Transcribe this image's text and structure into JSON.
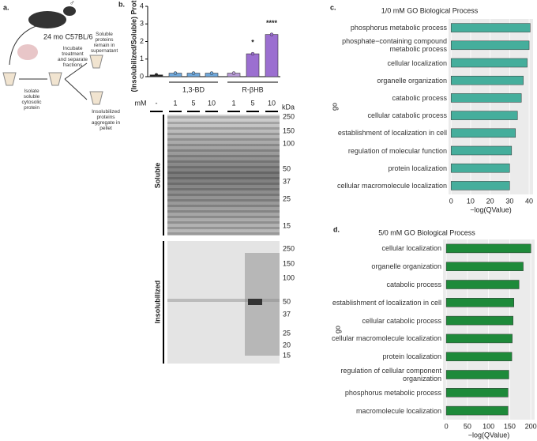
{
  "panel_a": {
    "label": "a.",
    "mouse": "24 mo C57BL/6",
    "step1": "Isolate soluble cytosolic protein",
    "step2": "Incubate treatment and separate fractions",
    "out1": "Soluble proteins remain in supernatant",
    "out2": "Insolubilized proteins aggregate in pellet"
  },
  "gel": {
    "soluble_label": "Soluble",
    "insolubilized_label": "Insolubilized",
    "kda": "kDa",
    "soluble_markers": [
      250,
      150,
      100,
      50,
      37,
      25,
      15
    ],
    "insolubilized_markers": [
      250,
      150,
      100,
      50,
      37,
      25,
      20,
      15
    ]
  },
  "chart_data": [
    {
      "type": "bar",
      "label": "b.",
      "ylabel": "(Insolubilized/Soluble) Protein",
      "xlabel": "mM",
      "categories": [
        "-",
        "1",
        "5",
        "10",
        "1",
        "5",
        "10"
      ],
      "values": [
        0.1,
        0.2,
        0.2,
        0.2,
        0.2,
        1.3,
        2.4
      ],
      "colors": [
        "#222222",
        "#6fa8dc",
        "#6fa8dc",
        "#6fa8dc",
        "#b79ad6",
        "#9b6fd0",
        "#9b6fd0"
      ],
      "groups": [
        "1,3-BD",
        "R-βHB"
      ],
      "annotations": [
        null,
        null,
        null,
        null,
        null,
        "*",
        "****"
      ],
      "ylim": [
        0,
        4
      ],
      "yticks": [
        0,
        1,
        2,
        3,
        4
      ]
    },
    {
      "type": "barh",
      "label": "c.",
      "title": "1/0 mM GO Biological Process",
      "xlabel": "−log(QValue)",
      "ylabel": "go",
      "categories": [
        "phosphorus metabolic process",
        "phosphate−containing compound metabolic process",
        "cellular localization",
        "organelle organization",
        "catabolic process",
        "cellular catabolic process",
        "establishment of localization in cell",
        "regulation of molecular function",
        "protein localization",
        "cellular macromolecule localization"
      ],
      "values": [
        40.5,
        40,
        39,
        37,
        36,
        34,
        33,
        31,
        30,
        30
      ],
      "color": "#45ae9c",
      "xlim": [
        -1.3,
        42
      ],
      "xticks": [
        0,
        10,
        20,
        30,
        40
      ]
    },
    {
      "type": "barh",
      "label": "d.",
      "title": "5/0 mM GO Biological Process",
      "xlabel": "−log(QValue)",
      "ylabel": "go",
      "categories": [
        "cellular localization",
        "organelle organization",
        "catabolic process",
        "establishment of localization in cell",
        "cellular catabolic process",
        "cellular macromolecule localization",
        "protein localization",
        "regulation of cellular component organization",
        "phosphorus metabolic process",
        "macromolecule localization"
      ],
      "values": [
        200,
        182,
        172,
        160,
        158,
        156,
        155,
        148,
        146,
        146
      ],
      "color": "#1e8a3a",
      "xlim": [
        -7.7,
        209
      ],
      "xticks": [
        0,
        50,
        100,
        150,
        200
      ]
    }
  ]
}
